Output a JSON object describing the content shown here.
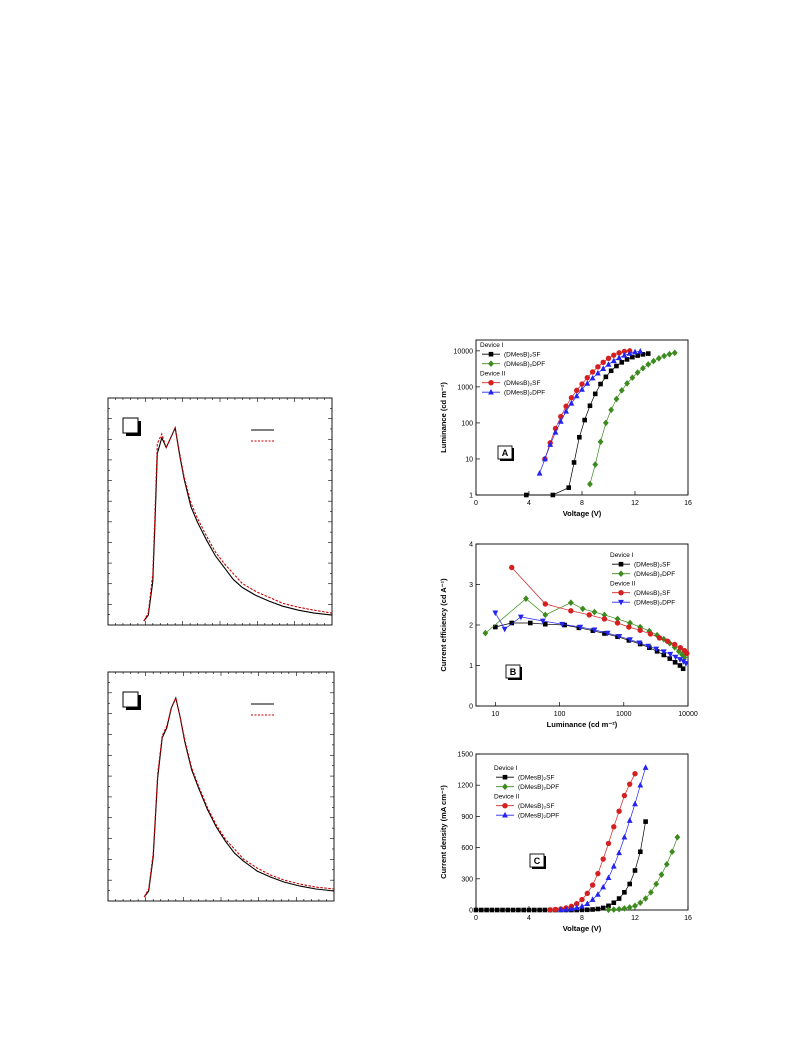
{
  "chart_data": [
    {
      "id": "spectrum-top",
      "type": "line",
      "panel_label": "",
      "title": "",
      "xlabel": "",
      "ylabel": "",
      "xlim": [
        0,
        1
      ],
      "ylim": [
        0,
        1
      ],
      "grid": false,
      "legend_placement": "top-right",
      "series": [
        {
          "color": "#000000",
          "dash": "solid",
          "x": [
            0.16,
            0.18,
            0.2,
            0.21,
            0.22,
            0.24,
            0.26,
            0.28,
            0.3,
            0.32,
            0.34,
            0.37,
            0.4,
            0.44,
            0.48,
            0.52,
            0.56,
            0.6,
            0.66,
            0.72,
            0.78,
            0.85,
            0.92,
            1.0
          ],
          "y": [
            0.0,
            0.03,
            0.2,
            0.5,
            0.85,
            0.93,
            0.88,
            0.93,
            0.98,
            0.84,
            0.72,
            0.58,
            0.5,
            0.41,
            0.33,
            0.27,
            0.21,
            0.17,
            0.13,
            0.1,
            0.075,
            0.055,
            0.04,
            0.03
          ]
        },
        {
          "color": "#cc0000",
          "dash": "dashed",
          "x": [
            0.16,
            0.18,
            0.2,
            0.21,
            0.22,
            0.24,
            0.26,
            0.28,
            0.3,
            0.32,
            0.34,
            0.37,
            0.4,
            0.44,
            0.48,
            0.52,
            0.56,
            0.6,
            0.66,
            0.72,
            0.78,
            0.85,
            0.92,
            1.0
          ],
          "y": [
            0.0,
            0.04,
            0.24,
            0.55,
            0.9,
            0.95,
            0.88,
            0.93,
            0.98,
            0.85,
            0.73,
            0.6,
            0.52,
            0.43,
            0.35,
            0.29,
            0.24,
            0.19,
            0.15,
            0.12,
            0.09,
            0.07,
            0.055,
            0.04
          ]
        }
      ]
    },
    {
      "id": "spectrum-bottom",
      "type": "line",
      "panel_label": "",
      "title": "",
      "xlabel": "",
      "ylabel": "",
      "xlim": [
        0,
        1
      ],
      "ylim": [
        0,
        1
      ],
      "grid": false,
      "legend_placement": "top-right",
      "series": [
        {
          "color": "#000000",
          "dash": "solid",
          "x": [
            0.16,
            0.18,
            0.2,
            0.22,
            0.24,
            0.26,
            0.28,
            0.3,
            0.32,
            0.34,
            0.37,
            0.4,
            0.44,
            0.48,
            0.52,
            0.56,
            0.6,
            0.66,
            0.72,
            0.78,
            0.85,
            0.92,
            1.0
          ],
          "y": [
            0.0,
            0.03,
            0.2,
            0.6,
            0.8,
            0.85,
            0.95,
            1.0,
            0.9,
            0.78,
            0.64,
            0.55,
            0.44,
            0.35,
            0.28,
            0.22,
            0.18,
            0.13,
            0.1,
            0.075,
            0.055,
            0.04,
            0.03
          ]
        },
        {
          "color": "#cc0000",
          "dash": "dashed",
          "x": [
            0.16,
            0.18,
            0.2,
            0.22,
            0.24,
            0.26,
            0.28,
            0.3,
            0.32,
            0.34,
            0.37,
            0.4,
            0.44,
            0.48,
            0.52,
            0.56,
            0.6,
            0.66,
            0.72,
            0.78,
            0.85,
            0.92,
            1.0
          ],
          "y": [
            0.0,
            0.04,
            0.22,
            0.62,
            0.81,
            0.86,
            0.95,
            1.0,
            0.9,
            0.79,
            0.65,
            0.56,
            0.45,
            0.36,
            0.29,
            0.24,
            0.19,
            0.145,
            0.11,
            0.085,
            0.065,
            0.05,
            0.04
          ]
        }
      ]
    },
    {
      "id": "luminance-voltage",
      "type": "scatter",
      "panel_label": "A",
      "xlabel": "Voltage (V)",
      "ylabel": "Luminance  (cd m⁻²)",
      "xlim": [
        0,
        16
      ],
      "ylim": [
        1,
        20000
      ],
      "yscale": "log",
      "xticks": [
        0,
        4,
        8,
        12,
        16
      ],
      "yticks": [
        1,
        10,
        100,
        1000,
        10000
      ],
      "legend_placement": "top-left",
      "legend": {
        "groups": [
          {
            "title": "Device I",
            "entries": [
              {
                "label": "(DMesB)₂SF",
                "marker": "square",
                "color": "#000000"
              },
              {
                "label": "(DMesB)₂DPF",
                "marker": "diamond",
                "color": "#3d8a1e"
              }
            ]
          },
          {
            "title": "Device II",
            "entries": [
              {
                "label": "(DMesB)₂SF",
                "marker": "circle",
                "color": "#d42020"
              },
              {
                "label": "(DMesB)₂DPF",
                "marker": "triangle-up",
                "color": "#2424f0"
              }
            ]
          }
        ]
      },
      "series": [
        {
          "label": "Device I (DMesB)₂SF",
          "marker": "square",
          "color": "#000000",
          "x": [
            3.8,
            5.8,
            7,
            7.4,
            7.8,
            8.2,
            8.6,
            9,
            9.4,
            9.8,
            10.2,
            10.6,
            11,
            11.4,
            11.8,
            12.2,
            12.6,
            13
          ],
          "y": [
            1,
            1,
            1.6,
            8,
            40,
            120,
            300,
            640,
            1200,
            1900,
            2800,
            3800,
            4800,
            5800,
            6700,
            7400,
            8000,
            8400
          ]
        },
        {
          "label": "Device I (DMesB)₂DPF",
          "marker": "diamond",
          "color": "#3d8a1e",
          "x": [
            8.6,
            9,
            9.4,
            9.8,
            10.2,
            10.6,
            11,
            11.4,
            11.8,
            12.2,
            12.6,
            13,
            13.4,
            13.8,
            14.2,
            14.6,
            15
          ],
          "y": [
            2,
            7,
            30,
            100,
            230,
            460,
            800,
            1250,
            1800,
            2500,
            3300,
            4200,
            5200,
            6200,
            7200,
            8100,
            8800
          ]
        },
        {
          "label": "Device II (DMesB)₂SF",
          "marker": "circle",
          "color": "#d42020",
          "x": [
            5.2,
            5.6,
            6,
            6.4,
            6.8,
            7.2,
            7.6,
            8,
            8.4,
            8.8,
            9.2,
            9.6,
            10,
            10.4,
            10.8,
            11.2,
            11.6
          ],
          "y": [
            10,
            28,
            70,
            150,
            290,
            500,
            800,
            1200,
            1800,
            2600,
            3600,
            4800,
            6200,
            7600,
            8800,
            9600,
            10000
          ]
        },
        {
          "label": "Device II (DMesB)₂DPF",
          "marker": "triangle-up",
          "color": "#2424f0",
          "x": [
            4.8,
            5.2,
            5.6,
            6,
            6.4,
            6.8,
            7.2,
            7.6,
            8,
            8.4,
            8.8,
            9.2,
            9.6,
            10,
            10.4,
            10.8,
            11.2,
            11.6,
            12,
            12.4
          ],
          "y": [
            4,
            10,
            25,
            55,
            110,
            210,
            350,
            560,
            850,
            1250,
            1750,
            2400,
            3200,
            4200,
            5300,
            6400,
            7500,
            8500,
            9300,
            9700
          ]
        }
      ]
    },
    {
      "id": "efficiency-luminance",
      "type": "scatter",
      "panel_label": "B",
      "xlabel": "Luminance  (cd m⁻²)",
      "ylabel": "Current efficiency  (cd A⁻¹)",
      "xlim": [
        5,
        10000
      ],
      "ylim": [
        0,
        4
      ],
      "xscale": "log",
      "xticks": [
        10,
        100,
        1000,
        10000
      ],
      "yticks": [
        0,
        1,
        2,
        3,
        4
      ],
      "legend_placement": "top-right",
      "legend": {
        "groups": [
          {
            "title": "Device I",
            "entries": [
              {
                "label": "(DMesB)₂SF",
                "marker": "square",
                "color": "#000000"
              },
              {
                "label": "(DMesB)₂DPF",
                "marker": "diamond",
                "color": "#3d8a1e"
              }
            ]
          },
          {
            "title": "Device II",
            "entries": [
              {
                "label": "(DMesB)₂SF",
                "marker": "circle",
                "color": "#d42020"
              },
              {
                "label": "(DMesB)₂DPF",
                "marker": "triangle-down",
                "color": "#2424f0"
              }
            ]
          }
        ]
      },
      "series": [
        {
          "label": "Device I (DMesB)₂SF",
          "marker": "square",
          "color": "#000000",
          "x": [
            10,
            18,
            35,
            60,
            120,
            200,
            330,
            500,
            800,
            1200,
            1800,
            2500,
            3300,
            4200,
            5200,
            6300,
            7500,
            8400
          ],
          "y": [
            1.95,
            2.05,
            2.05,
            2.02,
            2.0,
            1.93,
            1.86,
            1.79,
            1.71,
            1.62,
            1.53,
            1.44,
            1.35,
            1.26,
            1.17,
            1.08,
            1.0,
            0.92
          ]
        },
        {
          "label": "Device I (DMesB)₂DPF",
          "marker": "diamond",
          "color": "#3d8a1e",
          "x": [
            7,
            30,
            60,
            150,
            230,
            350,
            500,
            800,
            1250,
            1800,
            2500,
            3300,
            4200,
            5200,
            6200,
            7200,
            8100,
            8800
          ],
          "y": [
            1.8,
            2.65,
            2.25,
            2.55,
            2.4,
            2.32,
            2.25,
            2.15,
            2.05,
            1.95,
            1.85,
            1.75,
            1.65,
            1.55,
            1.45,
            1.35,
            1.27,
            1.2
          ]
        },
        {
          "label": "Device II (DMesB)₂SF",
          "marker": "circle",
          "color": "#d42020",
          "x": [
            18,
            60,
            150,
            290,
            500,
            800,
            1200,
            1800,
            2600,
            3600,
            4800,
            6200,
            7600,
            8800,
            9600
          ],
          "y": [
            3.42,
            2.52,
            2.35,
            2.25,
            2.15,
            2.05,
            1.95,
            1.87,
            1.78,
            1.68,
            1.6,
            1.52,
            1.44,
            1.37,
            1.3
          ]
        },
        {
          "label": "Device II (DMesB)₂DPF",
          "marker": "triangle-down",
          "color": "#2424f0",
          "x": [
            10,
            14,
            25,
            55,
            110,
            210,
            350,
            560,
            850,
            1250,
            1750,
            2400,
            3200,
            4200,
            5300,
            6400,
            7500,
            8500,
            9300
          ],
          "y": [
            2.3,
            1.9,
            2.2,
            2.1,
            2.02,
            1.95,
            1.88,
            1.8,
            1.72,
            1.64,
            1.56,
            1.48,
            1.41,
            1.34,
            1.28,
            1.21,
            1.15,
            1.1,
            1.05
          ]
        }
      ]
    },
    {
      "id": "current-density-voltage",
      "type": "scatter",
      "panel_label": "C",
      "xlabel": "Voltage (V)",
      "ylabel": "Current density  (mA cm⁻²)",
      "xlim": [
        0,
        16
      ],
      "ylim": [
        0,
        1500
      ],
      "xticks": [
        0,
        4,
        8,
        12,
        16
      ],
      "yticks": [
        0,
        300,
        600,
        900,
        1200,
        1500
      ],
      "legend_placement": "top-left",
      "legend": {
        "groups": [
          {
            "title": "Device I",
            "entries": [
              {
                "label": "(DMesB)₂SF",
                "marker": "square",
                "color": "#000000"
              },
              {
                "label": "(DMesB)₂DPF",
                "marker": "diamond",
                "color": "#3d8a1e"
              }
            ]
          },
          {
            "title": "Device II",
            "entries": [
              {
                "label": "(DMesB)₂SF",
                "marker": "circle",
                "color": "#d42020"
              },
              {
                "label": "(DMesB)₂DPF",
                "marker": "triangle-up",
                "color": "#2424f0"
              }
            ]
          }
        ]
      },
      "series": [
        {
          "label": "Device I (DMesB)₂SF",
          "marker": "square",
          "color": "#000000",
          "x": [
            0,
            0.4,
            0.8,
            1.2,
            1.6,
            2,
            2.4,
            2.8,
            3.2,
            3.6,
            4,
            4.4,
            4.8,
            5.2,
            5.6,
            6,
            6.4,
            6.8,
            7.2,
            7.6,
            8,
            8.4,
            8.8,
            9.2,
            9.6,
            10,
            10.4,
            10.8,
            11.2,
            11.6,
            12,
            12.4,
            12.8
          ],
          "y": [
            0,
            0,
            0,
            0,
            0,
            0,
            0,
            0,
            0,
            0,
            0,
            0,
            0,
            0,
            0,
            0,
            0,
            0,
            0,
            0,
            1,
            2,
            5,
            10,
            20,
            40,
            70,
            110,
            170,
            250,
            380,
            560,
            850
          ]
        },
        {
          "label": "Device I (DMesB)₂DPF",
          "marker": "diamond",
          "color": "#3d8a1e",
          "x": [
            10,
            10.4,
            10.8,
            11.2,
            11.6,
            12,
            12.4,
            12.8,
            13.2,
            13.6,
            14,
            14.4,
            14.8,
            15.2
          ],
          "y": [
            2,
            4,
            8,
            15,
            25,
            40,
            70,
            110,
            170,
            250,
            340,
            440,
            560,
            700
          ]
        },
        {
          "label": "Device II (DMesB)₂SF",
          "marker": "circle",
          "color": "#d42020",
          "x": [
            5.6,
            6,
            6.4,
            6.8,
            7.2,
            7.6,
            8,
            8.4,
            8.8,
            9.2,
            9.6,
            10,
            10.4,
            10.8,
            11.2,
            11.6,
            12
          ],
          "y": [
            2,
            5,
            10,
            20,
            35,
            60,
            100,
            160,
            240,
            350,
            490,
            640,
            800,
            950,
            1100,
            1210,
            1310
          ]
        },
        {
          "label": "Device II (DMesB)₂DPF",
          "marker": "triangle-up",
          "color": "#2424f0",
          "x": [
            6.4,
            6.8,
            7.2,
            7.6,
            8,
            8.4,
            8.8,
            9.2,
            9.6,
            10,
            10.4,
            10.8,
            11.2,
            11.6,
            12,
            12.4,
            12.8
          ],
          "y": [
            2,
            5,
            10,
            20,
            35,
            60,
            100,
            150,
            220,
            310,
            420,
            550,
            700,
            860,
            1020,
            1200,
            1370
          ]
        }
      ]
    }
  ]
}
